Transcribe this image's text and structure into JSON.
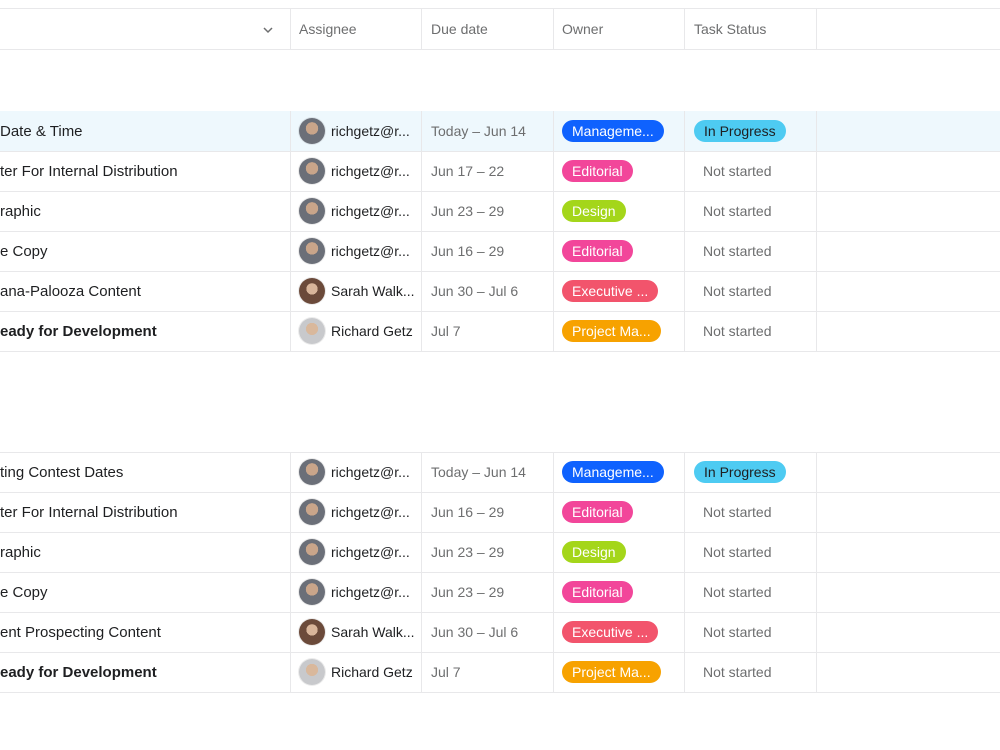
{
  "header": {
    "assignee_label": "Assignee",
    "due_label": "Due date",
    "owner_label": "Owner",
    "status_label": "Task Status"
  },
  "colors": {
    "management": "#0f62fe",
    "editorial": "#f2469a",
    "design": "#a4d61a",
    "executive": "#f2546c",
    "project": "#f7a200",
    "in_progress": "#4ecbf2"
  },
  "icons": [
    "chevron-down-icon",
    "avatar-richgetz",
    "avatar-sarah-walker",
    "avatar-richard-getz"
  ],
  "sections": [
    {
      "rows": [
        {
          "name": "Date & Time",
          "assignee": "richgetz@r...",
          "avatar": "rg",
          "due": "Today – Jun 14",
          "owner": "Manageme...",
          "owner_color": "#0f62fe",
          "status": "In Progress",
          "status_pill": true,
          "highlight": true,
          "bold": false
        },
        {
          "name": "ter For Internal Distribution",
          "assignee": "richgetz@r...",
          "avatar": "rg",
          "due": "Jun 17 – 22",
          "owner": "Editorial",
          "owner_color": "#f2469a",
          "status": "Not started",
          "status_pill": false,
          "highlight": false,
          "bold": false
        },
        {
          "name": "raphic",
          "assignee": "richgetz@r...",
          "avatar": "rg",
          "due": "Jun 23 – 29",
          "owner": "Design",
          "owner_color": "#a4d61a",
          "status": "Not started",
          "status_pill": false,
          "highlight": false,
          "bold": false
        },
        {
          "name": "e Copy",
          "assignee": "richgetz@r...",
          "avatar": "rg",
          "due": "Jun 16 – 29",
          "owner": "Editorial",
          "owner_color": "#f2469a",
          "status": "Not started",
          "status_pill": false,
          "highlight": false,
          "bold": false
        },
        {
          "name": "ana-Palooza Content",
          "assignee": "Sarah Walk...",
          "avatar": "sw",
          "due": "Jun 30 – Jul 6",
          "owner": "Executive ...",
          "owner_color": "#f2546c",
          "status": "Not started",
          "status_pill": false,
          "highlight": false,
          "bold": false
        },
        {
          "name": "eady for Development",
          "assignee": "Richard Getz",
          "avatar": "rg2",
          "due": "Jul 7",
          "owner": "Project Ma...",
          "owner_color": "#f7a200",
          "status": "Not started",
          "status_pill": false,
          "highlight": false,
          "bold": true
        }
      ]
    },
    {
      "rows": [
        {
          "name": "ting Contest Dates",
          "assignee": "richgetz@r...",
          "avatar": "rg",
          "due": "Today – Jun 14",
          "owner": "Manageme...",
          "owner_color": "#0f62fe",
          "status": "In Progress",
          "status_pill": true,
          "highlight": false,
          "bold": false
        },
        {
          "name": "ter For Internal Distribution",
          "assignee": "richgetz@r...",
          "avatar": "rg",
          "due": "Jun 16 – 29",
          "owner": "Editorial",
          "owner_color": "#f2469a",
          "status": "Not started",
          "status_pill": false,
          "highlight": false,
          "bold": false
        },
        {
          "name": "raphic",
          "assignee": "richgetz@r...",
          "avatar": "rg",
          "due": "Jun 23 – 29",
          "owner": "Design",
          "owner_color": "#a4d61a",
          "status": "Not started",
          "status_pill": false,
          "highlight": false,
          "bold": false
        },
        {
          "name": "e Copy",
          "assignee": "richgetz@r...",
          "avatar": "rg",
          "due": "Jun 23 – 29",
          "owner": "Editorial",
          "owner_color": "#f2469a",
          "status": "Not started",
          "status_pill": false,
          "highlight": false,
          "bold": false
        },
        {
          "name": "ent Prospecting Content",
          "assignee": "Sarah Walk...",
          "avatar": "sw",
          "due": "Jun 30 – Jul 6",
          "owner": "Executive ...",
          "owner_color": "#f2546c",
          "status": "Not started",
          "status_pill": false,
          "highlight": false,
          "bold": false
        },
        {
          "name": "eady for Development",
          "assignee": "Richard Getz",
          "avatar": "rg2",
          "due": "Jul 7",
          "owner": "Project Ma...",
          "owner_color": "#f7a200",
          "status": "Not started",
          "status_pill": false,
          "highlight": false,
          "bold": true
        }
      ]
    }
  ]
}
